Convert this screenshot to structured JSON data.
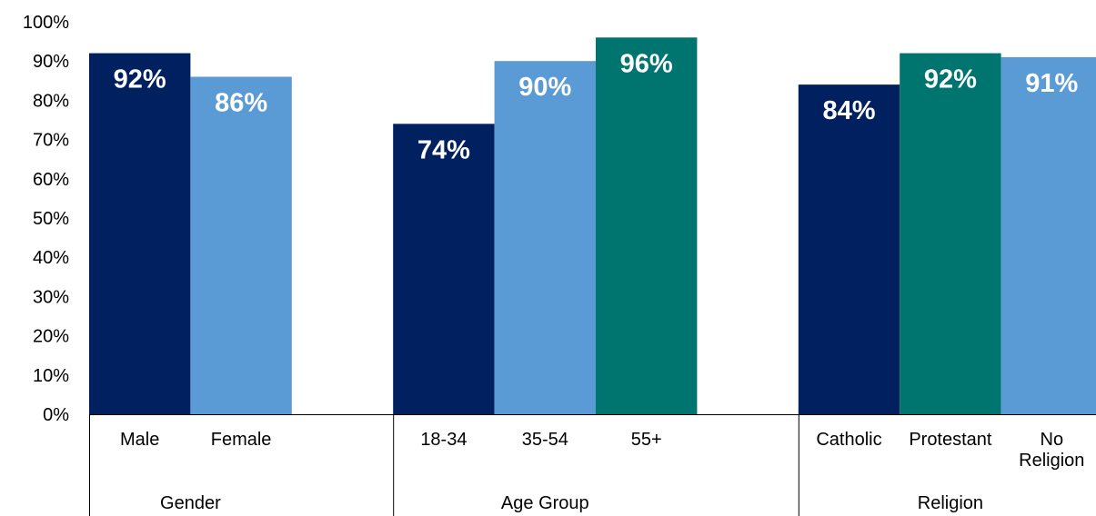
{
  "chart_data": {
    "type": "bar",
    "title": "",
    "xlabel": "",
    "ylabel": "",
    "ylim": [
      0,
      100
    ],
    "y_ticks": [
      "0%",
      "10%",
      "20%",
      "30%",
      "40%",
      "50%",
      "60%",
      "70%",
      "80%",
      "90%",
      "100%"
    ],
    "grid": false,
    "legend": "none",
    "groups": [
      {
        "name": "Gender",
        "bars": [
          {
            "label": [
              "Male"
            ],
            "value": 92,
            "value_label": "92%",
            "color": "#002060"
          },
          {
            "label": [
              "Female"
            ],
            "value": 86,
            "value_label": "86%",
            "color": "#5B9BD5"
          }
        ]
      },
      {
        "name": "Age Group",
        "bars": [
          {
            "label": [
              "18-34"
            ],
            "value": 74,
            "value_label": "74%",
            "color": "#002060"
          },
          {
            "label": [
              "35-54"
            ],
            "value": 90,
            "value_label": "90%",
            "color": "#5B9BD5"
          },
          {
            "label": [
              "55+"
            ],
            "value": 96,
            "value_label": "96%",
            "color": "#00746F"
          }
        ]
      },
      {
        "name": "Religion",
        "bars": [
          {
            "label": [
              "Catholic"
            ],
            "value": 84,
            "value_label": "84%",
            "color": "#002060"
          },
          {
            "label": [
              "Protestant"
            ],
            "value": 92,
            "value_label": "92%",
            "color": "#00746F"
          },
          {
            "label": [
              "No",
              "Religion"
            ],
            "value": 91,
            "value_label": "91%",
            "color": "#5B9BD5"
          }
        ]
      }
    ]
  }
}
